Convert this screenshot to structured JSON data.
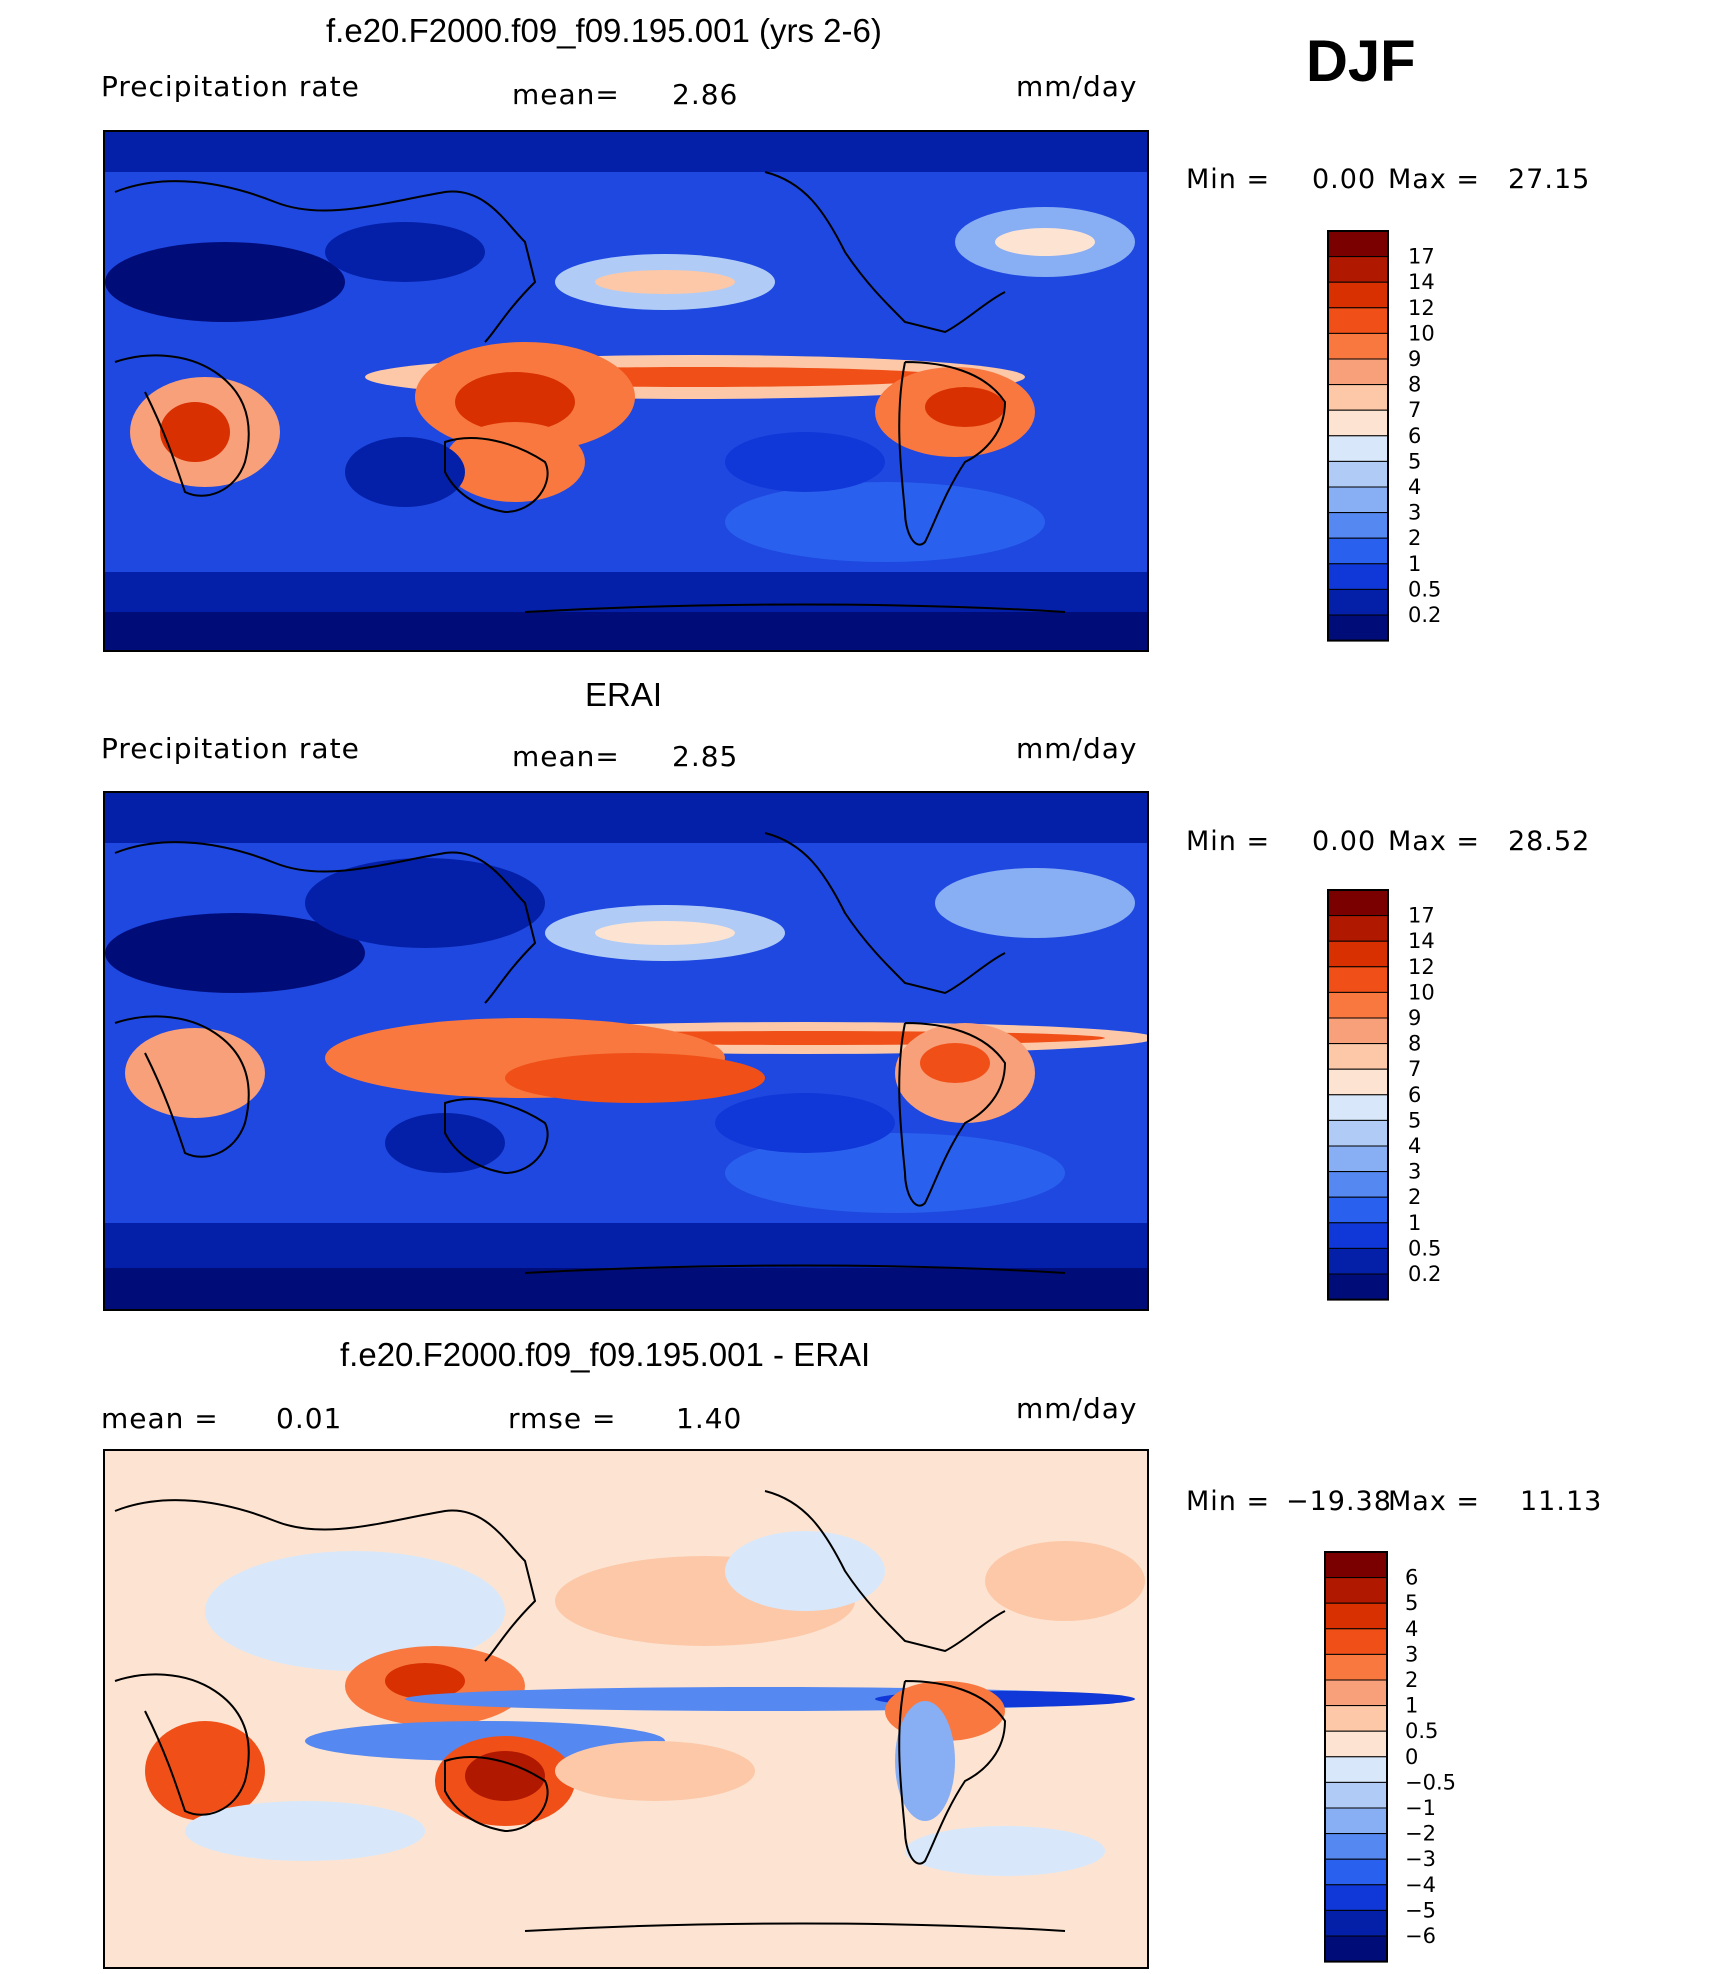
{
  "season": "DJF",
  "panels": [
    {
      "title": "f.e20.F2000.f09_f09.195.001 (yrs 2-6)",
      "left_label": "Precipitation  rate",
      "mid_label": "mean=",
      "mid_value": "2.86",
      "units": "mm/day",
      "min_label": "Min  =",
      "min_value": "0.00",
      "max_label": "Max  =",
      "max_value": "27.15"
    },
    {
      "title": "ERAI",
      "left_label": "Precipitation  rate",
      "mid_label": "mean=",
      "mid_value": "2.85",
      "units": "mm/day",
      "min_label": "Min  =",
      "min_value": "0.00",
      "max_label": "Max  =",
      "max_value": "28.52"
    },
    {
      "title": "f.e20.F2000.f09_f09.195.001 - ERAI",
      "left_label": "mean  =",
      "left_value": "0.01",
      "mid_label": "rmse  =",
      "mid_value": "1.40",
      "units": "mm/day",
      "min_label": "Min  =",
      "min_value": "−19.38",
      "max_label": "Max  =",
      "max_value": "11.13"
    }
  ],
  "chart_data": [
    {
      "type": "heatmap",
      "colorbar": {
        "levels": [
          "17",
          "14",
          "12",
          "10",
          "9",
          "8",
          "7",
          "6",
          "5",
          "4",
          "3",
          "2",
          "1",
          "0.5",
          "0.2"
        ],
        "colors": [
          "#7a0000",
          "#b01800",
          "#d83000",
          "#f05018",
          "#f87840",
          "#f8a07a",
          "#fcc8a8",
          "#fde4d2",
          "#d8e8fa",
          "#b0ccf6",
          "#88aef4",
          "#5588f0",
          "#2a60ee",
          "#1038d8",
          "#0420a8",
          "#000c78"
        ]
      }
    },
    {
      "type": "heatmap",
      "colorbar": {
        "levels": [
          "17",
          "14",
          "12",
          "10",
          "9",
          "8",
          "7",
          "6",
          "5",
          "4",
          "3",
          "2",
          "1",
          "0.5",
          "0.2"
        ],
        "colors": [
          "#7a0000",
          "#b01800",
          "#d83000",
          "#f05018",
          "#f87840",
          "#f8a07a",
          "#fcc8a8",
          "#fde4d2",
          "#d8e8fa",
          "#b0ccf6",
          "#88aef4",
          "#5588f0",
          "#2a60ee",
          "#1038d8",
          "#0420a8",
          "#000c78"
        ]
      }
    },
    {
      "type": "heatmap",
      "colorbar": {
        "levels": [
          "6",
          "5",
          "4",
          "3",
          "2",
          "1",
          "0.5",
          "0",
          "−0.5",
          "−1",
          "−2",
          "−3",
          "−4",
          "−5",
          "−6"
        ],
        "colors": [
          "#7a0000",
          "#b01800",
          "#d83000",
          "#f05018",
          "#f87840",
          "#f8a07a",
          "#fcc8a8",
          "#fde4d2",
          "#d8e8fa",
          "#b0ccf6",
          "#88aef4",
          "#5588f0",
          "#2a60ee",
          "#1038d8",
          "#0420a8",
          "#000c78"
        ]
      }
    }
  ]
}
